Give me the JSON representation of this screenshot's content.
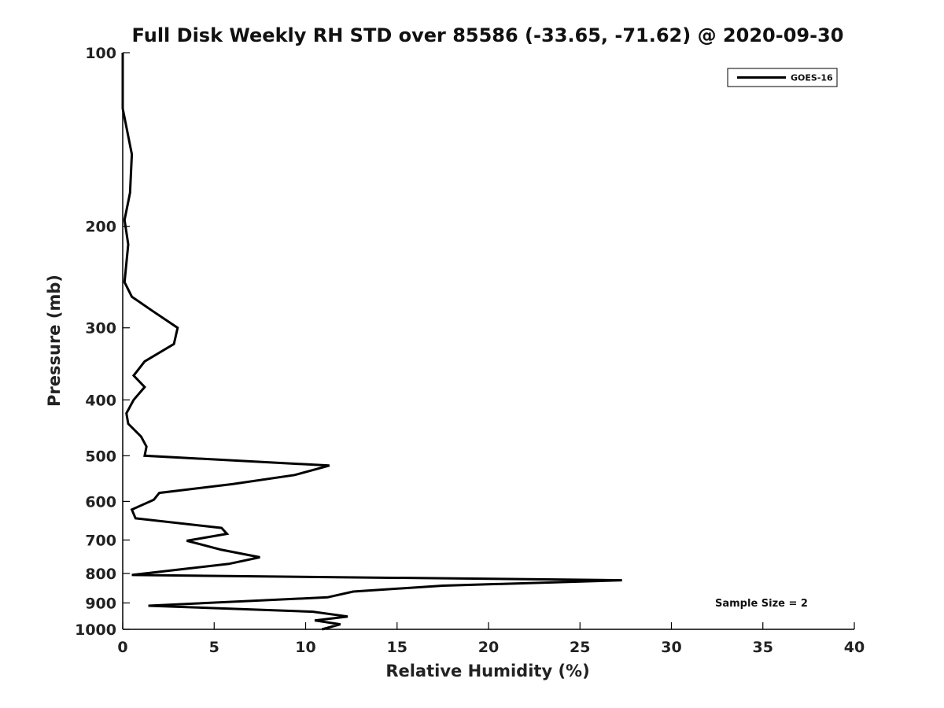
{
  "chart_data": {
    "type": "line",
    "title": "Full Disk Weekly RH STD over 85586 (-33.65, -71.62) @ 2020-09-30",
    "xlabel": "Relative Humidity (%)",
    "ylabel": "Pressure (mb)",
    "xlim": [
      0,
      40
    ],
    "ylim": [
      100,
      1000
    ],
    "y_scale": "log",
    "y_reversed": true,
    "grid": false,
    "x_ticks": [
      0,
      5,
      10,
      15,
      20,
      25,
      30,
      35,
      40
    ],
    "y_ticks": [
      100,
      200,
      300,
      400,
      500,
      600,
      700,
      800,
      900,
      1000
    ],
    "legend": {
      "position": "top-right",
      "entries": [
        "GOES-16"
      ]
    },
    "annotation": "Sample Size = 2",
    "colors": {
      "line": "#000000",
      "axes": "#000000"
    },
    "series": [
      {
        "name": "GOES-16",
        "points": [
          [
            0.0,
            100
          ],
          [
            0.0,
            125
          ],
          [
            0.5,
            150
          ],
          [
            0.4,
            175
          ],
          [
            0.1,
            195
          ],
          [
            0.3,
            215
          ],
          [
            0.1,
            250
          ],
          [
            0.5,
            265
          ],
          [
            1.6,
            280
          ],
          [
            3.0,
            300
          ],
          [
            2.8,
            320
          ],
          [
            1.2,
            343
          ],
          [
            0.6,
            363
          ],
          [
            1.2,
            380
          ],
          [
            0.6,
            400
          ],
          [
            0.2,
            422
          ],
          [
            0.3,
            440
          ],
          [
            1.0,
            463
          ],
          [
            1.3,
            482
          ],
          [
            1.2,
            500
          ],
          [
            11.3,
            520
          ],
          [
            9.4,
            540
          ],
          [
            6.0,
            560
          ],
          [
            2.0,
            580
          ],
          [
            1.7,
            596
          ],
          [
            0.5,
            620
          ],
          [
            0.7,
            642
          ],
          [
            5.4,
            667
          ],
          [
            5.7,
            683
          ],
          [
            3.5,
            702
          ],
          [
            5.4,
            728
          ],
          [
            7.5,
            750
          ],
          [
            5.8,
            770
          ],
          [
            3.5,
            785
          ],
          [
            0.5,
            805
          ],
          [
            27.3,
            822
          ],
          [
            17.5,
            840
          ],
          [
            12.6,
            860
          ],
          [
            11.2,
            880
          ],
          [
            1.4,
            910
          ],
          [
            10.4,
            932
          ],
          [
            12.3,
            950
          ],
          [
            10.5,
            965
          ],
          [
            11.9,
            980
          ],
          [
            10.9,
            1000
          ]
        ]
      }
    ]
  }
}
